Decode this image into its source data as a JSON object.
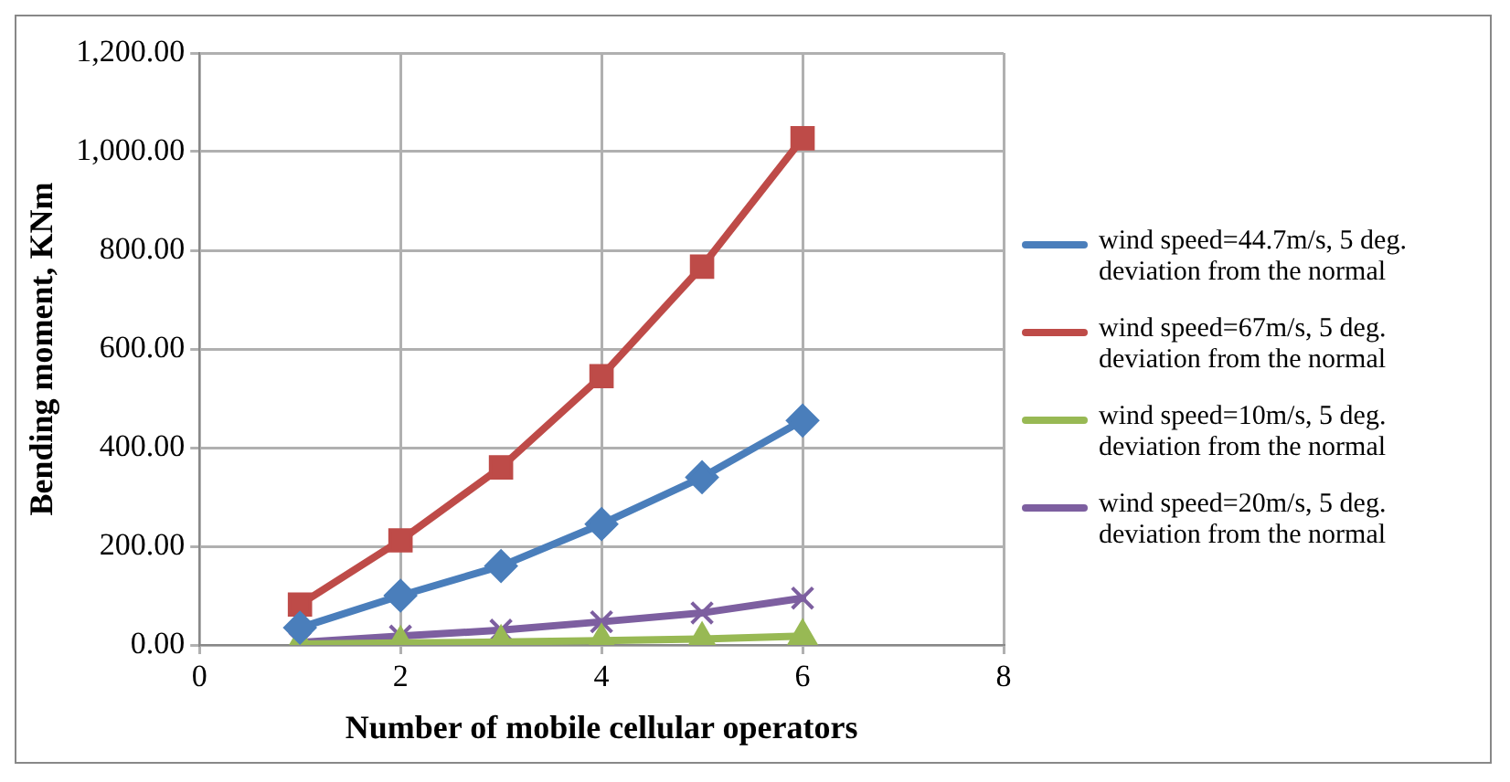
{
  "chart_data": {
    "type": "line",
    "xlabel": "Number of mobile cellular operators",
    "ylabel": "Bending moment, KNm",
    "x": [
      1,
      2,
      3,
      4,
      5,
      6
    ],
    "series": [
      {
        "name": "wind speed=44.7m/s, 5 deg. deviation from the normal",
        "color": "#4a7ebb",
        "marker": "diamond",
        "values": [
          35,
          100,
          160,
          245,
          340,
          455
        ]
      },
      {
        "name": "wind speed=67m/s, 5 deg. deviation from the normal",
        "color": "#be4b48",
        "marker": "square",
        "values": [
          82,
          212,
          360,
          545,
          767,
          1027
        ]
      },
      {
        "name": "wind speed=10m/s, 5 deg. deviation from the normal",
        "color": "#98b954",
        "marker": "triangle",
        "values": [
          2,
          4,
          6,
          9,
          12,
          18
        ]
      },
      {
        "name": "wind speed=20m/s, 5 deg. deviation from the normal",
        "color": "#7d5fa0",
        "marker": "cross",
        "values": [
          5,
          18,
          30,
          47,
          65,
          95
        ]
      }
    ],
    "xlim": [
      0,
      8
    ],
    "xticks": [
      0,
      2,
      4,
      6,
      8
    ],
    "ylim": [
      0,
      1200
    ],
    "yticks": [
      {
        "value": 0,
        "label": "0.00"
      },
      {
        "value": 200,
        "label": "200.00"
      },
      {
        "value": 400,
        "label": "400.00"
      },
      {
        "value": 600,
        "label": "600.00"
      },
      {
        "value": 800,
        "label": "800.00"
      },
      {
        "value": 1000,
        "label": "1,000.00"
      },
      {
        "value": 1200,
        "label": "1,200.00"
      }
    ],
    "grid": true,
    "legend": "right"
  }
}
